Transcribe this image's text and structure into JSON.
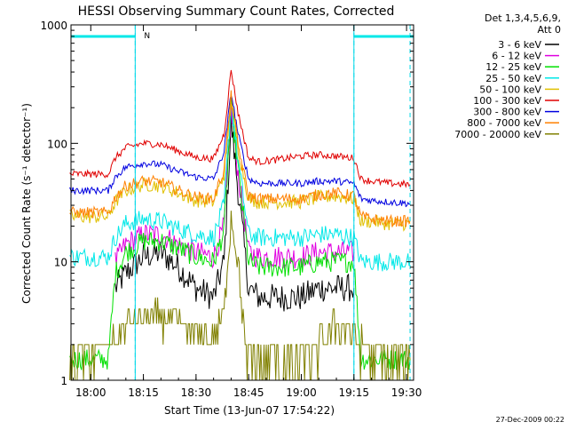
{
  "chart_data": {
    "type": "line",
    "title": "HESSI Observing Summary Count Rates, Corrected",
    "xlabel": "Start Time (13-Jun-07 17:54:22)",
    "ylabel": "Corrected Count Rate (s⁻¹ detector⁻¹)",
    "y_scale": "log",
    "ylim": [
      1,
      1000
    ],
    "xlim": [
      "17:54:22",
      "19:32:00"
    ],
    "x_ticks": [
      "18:00",
      "18:15",
      "18:30",
      "18:45",
      "19:00",
      "19:15",
      "19:30"
    ],
    "y_ticks": [
      "1",
      "10",
      "100",
      "1000"
    ],
    "legend_header": [
      "Det 1,3,4,5,6,9,",
      "Att 0"
    ],
    "legend_position": "right",
    "footer_date": "27-Dec-2009 00:22",
    "flag_label": "N",
    "night_intervals": [
      [
        "17:54:22",
        "18:12:40"
      ],
      [
        "19:15:00",
        "19:32:00"
      ]
    ],
    "dashed_markers": [
      "18:12:40",
      "19:15:00",
      "19:31:00"
    ],
    "series": [
      {
        "name": "3 - 6 keV",
        "color": "#000000",
        "times": [
          "18:07",
          "18:10",
          "18:15",
          "18:20",
          "18:25",
          "18:30",
          "18:35",
          "18:38",
          "18:40",
          "18:42",
          "18:45",
          "18:48",
          "18:52",
          "19:00",
          "19:05",
          "19:10",
          "19:15"
        ],
        "values": [
          6,
          8,
          11,
          12,
          9,
          6,
          5,
          10,
          150,
          40,
          6,
          5,
          5,
          5,
          6,
          6,
          6
        ]
      },
      {
        "name": "6 - 12 keV",
        "color": "#e000e0",
        "times": [
          "18:07",
          "18:10",
          "18:15",
          "18:20",
          "18:25",
          "18:30",
          "18:35",
          "18:38",
          "18:40",
          "18:42",
          "18:45",
          "18:48",
          "18:52",
          "19:00",
          "19:05",
          "19:10",
          "19:15"
        ],
        "values": [
          10,
          14,
          17,
          17,
          14,
          12,
          11,
          20,
          190,
          55,
          12,
          11,
          11,
          11,
          12,
          12,
          12
        ]
      },
      {
        "name": "12 - 25 keV",
        "color": "#00e000",
        "times": [
          "17:54",
          "18:05",
          "18:07",
          "18:10",
          "18:15",
          "18:20",
          "18:25",
          "18:30",
          "18:35",
          "18:38",
          "18:40",
          "18:42",
          "18:45",
          "18:48",
          "18:52",
          "19:00",
          "19:05",
          "19:10",
          "19:15",
          "19:17",
          "19:20",
          "19:25",
          "19:31"
        ],
        "values": [
          1.5,
          1.5,
          8,
          12,
          15,
          15,
          13,
          11,
          10,
          18,
          210,
          60,
          10,
          9,
          9,
          9,
          10,
          10,
          10,
          1.5,
          1.5,
          1.5,
          1.5
        ]
      },
      {
        "name": "25 - 50 keV",
        "color": "#00e8e8",
        "times": [
          "17:54",
          "18:00",
          "18:05",
          "18:07",
          "18:10",
          "18:15",
          "18:20",
          "18:25",
          "18:30",
          "18:35",
          "18:38",
          "18:40",
          "18:42",
          "18:45",
          "18:48",
          "18:52",
          "19:00",
          "19:05",
          "19:10",
          "19:15",
          "19:17",
          "19:20",
          "19:25",
          "19:31"
        ],
        "values": [
          11,
          11,
          11,
          16,
          21,
          23,
          22,
          19,
          17,
          16,
          30,
          230,
          70,
          17,
          16,
          16,
          16,
          17,
          17,
          16,
          10,
          10,
          10,
          10
        ]
      },
      {
        "name": "50 - 100 keV",
        "color": "#e0c000",
        "times": [
          "17:54",
          "18:00",
          "18:05",
          "18:07",
          "18:10",
          "18:15",
          "18:20",
          "18:25",
          "18:30",
          "18:35",
          "18:38",
          "18:40",
          "18:42",
          "18:45",
          "18:48",
          "18:52",
          "19:00",
          "19:05",
          "19:10",
          "19:15",
          "19:17",
          "19:20",
          "19:25",
          "19:31"
        ],
        "values": [
          24,
          24,
          24,
          32,
          40,
          45,
          44,
          38,
          33,
          32,
          55,
          230,
          90,
          34,
          32,
          32,
          32,
          35,
          36,
          34,
          22,
          22,
          21,
          21
        ]
      },
      {
        "name": "100 - 300 keV",
        "color": "#e00000",
        "times": [
          "17:54",
          "18:00",
          "18:05",
          "18:07",
          "18:10",
          "18:15",
          "18:20",
          "18:25",
          "18:30",
          "18:35",
          "18:38",
          "18:40",
          "18:42",
          "18:45",
          "18:48",
          "18:52",
          "19:00",
          "19:05",
          "19:10",
          "19:15",
          "19:17",
          "19:20",
          "19:25",
          "19:31"
        ],
        "values": [
          55,
          55,
          55,
          75,
          92,
          100,
          98,
          86,
          76,
          74,
          120,
          420,
          180,
          75,
          70,
          72,
          78,
          80,
          78,
          75,
          50,
          48,
          46,
          45
        ]
      },
      {
        "name": "300 - 800 keV",
        "color": "#0000e0",
        "times": [
          "17:54",
          "18:00",
          "18:05",
          "18:07",
          "18:10",
          "18:15",
          "18:20",
          "18:25",
          "18:30",
          "18:35",
          "18:38",
          "18:40",
          "18:42",
          "18:45",
          "18:48",
          "18:52",
          "19:00",
          "19:05",
          "19:10",
          "19:15",
          "19:17",
          "19:20",
          "19:25",
          "19:31"
        ],
        "values": [
          40,
          40,
          40,
          52,
          63,
          68,
          66,
          58,
          52,
          50,
          85,
          270,
          120,
          50,
          46,
          46,
          46,
          48,
          48,
          46,
          34,
          33,
          32,
          31
        ]
      },
      {
        "name": "800 - 7000 keV",
        "color": "#ff8000",
        "times": [
          "17:54",
          "18:00",
          "18:05",
          "18:07",
          "18:10",
          "18:15",
          "18:20",
          "18:25",
          "18:30",
          "18:35",
          "18:38",
          "18:40",
          "18:42",
          "18:45",
          "18:48",
          "18:52",
          "19:00",
          "19:05",
          "19:10",
          "19:15",
          "19:17",
          "19:20",
          "19:25",
          "19:31"
        ],
        "values": [
          26,
          26,
          26,
          35,
          44,
          48,
          47,
          40,
          35,
          34,
          60,
          250,
          95,
          36,
          34,
          34,
          34,
          37,
          38,
          36,
          24,
          23,
          22,
          22
        ]
      },
      {
        "name": "7000 - 20000 keV",
        "color": "#808000",
        "times": [
          "17:54",
          "18:07",
          "18:10",
          "18:15",
          "18:20",
          "18:25",
          "18:30",
          "18:35",
          "18:38",
          "18:40",
          "18:42",
          "18:44",
          "18:46",
          "18:50",
          "19:00",
          "19:05",
          "19:10",
          "19:15",
          "19:20",
          "19:31"
        ],
        "values": [
          1.5,
          2,
          3,
          3.5,
          3.5,
          3,
          2.5,
          2,
          4,
          25,
          10,
          2,
          1.5,
          1.5,
          1.5,
          2,
          3,
          2.5,
          1.5,
          1.5
        ]
      }
    ]
  }
}
